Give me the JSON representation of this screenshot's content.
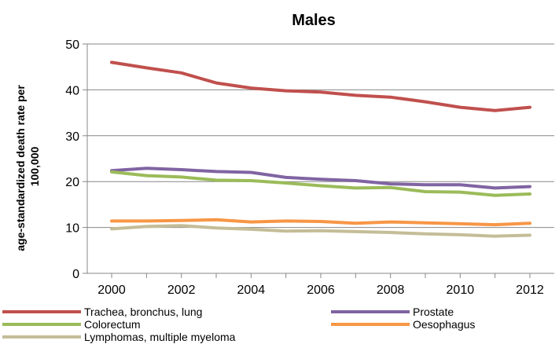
{
  "chart_data": {
    "type": "line",
    "title": "Males",
    "ylabel_line1": "age-standardized death rate per",
    "ylabel_line2": "100,000",
    "xlabel": "",
    "x": [
      2000,
      2001,
      2002,
      2003,
      2004,
      2005,
      2006,
      2007,
      2008,
      2009,
      2010,
      2011,
      2012
    ],
    "x_tick_labels": [
      "2000",
      "2002",
      "2004",
      "2006",
      "2008",
      "2010",
      "2012"
    ],
    "y_tick_labels": [
      "0",
      "10",
      "20",
      "30",
      "40",
      "50"
    ],
    "xlim": [
      1999.3,
      2012.7
    ],
    "ylim": [
      0,
      50
    ],
    "grid": "horizontal",
    "legend_position": "bottom",
    "series": [
      {
        "name": "Trachea, bronchus, lung",
        "color": "#C0504D",
        "values": [
          46.0,
          44.8,
          43.7,
          41.5,
          40.4,
          39.8,
          39.5,
          38.8,
          38.4,
          37.4,
          36.2,
          35.5,
          36.2
        ]
      },
      {
        "name": "Prostate",
        "color": "#8064A2",
        "values": [
          22.4,
          22.9,
          22.6,
          22.2,
          22.0,
          20.9,
          20.5,
          20.2,
          19.5,
          19.3,
          19.3,
          18.6,
          18.9
        ]
      },
      {
        "name": "Colorectum",
        "color": "#9BBB59",
        "values": [
          22.1,
          21.3,
          21.0,
          20.3,
          20.2,
          19.7,
          19.1,
          18.6,
          18.7,
          17.8,
          17.7,
          17.0,
          17.3
        ]
      },
      {
        "name": "Oesophagus",
        "color": "#F79646",
        "values": [
          11.4,
          11.4,
          11.5,
          11.7,
          11.2,
          11.4,
          11.3,
          10.9,
          11.2,
          11.0,
          10.8,
          10.6,
          10.9
        ]
      },
      {
        "name": "Lymphomas, multiple myeloma",
        "color": "#C4BD97",
        "values": [
          9.7,
          10.2,
          10.4,
          9.9,
          9.6,
          9.2,
          9.3,
          9.1,
          8.9,
          8.6,
          8.4,
          8.1,
          8.3
        ]
      }
    ]
  }
}
